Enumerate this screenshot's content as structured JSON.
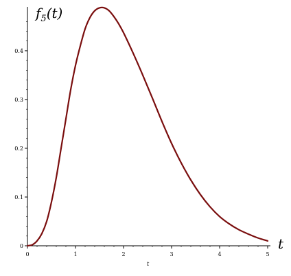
{
  "chart_data": {
    "type": "line",
    "ylabel": "f",
    "ylabel_sub": "5",
    "ylabel_arg": "(t)",
    "xlabel": "t",
    "xlabel_small": "t",
    "xlim": [
      0,
      5
    ],
    "ylim": [
      0,
      0.49
    ],
    "x_ticks": [
      0,
      1,
      2,
      3,
      4,
      5
    ],
    "x_tick_labels": [
      "0",
      "1",
      "2",
      "3",
      "4",
      "5"
    ],
    "y_ticks": [
      0,
      0.1,
      0.2,
      0.3,
      0.4
    ],
    "y_tick_labels": [
      "0",
      "0.1",
      "0.2",
      "0.3",
      "0.4"
    ],
    "grid": false,
    "line_color": "#7a0e0e",
    "series": [
      {
        "x": [
          0,
          0.1,
          0.2,
          0.3,
          0.4,
          0.5,
          0.6,
          0.7,
          0.8,
          0.9,
          1.0,
          1.1,
          1.2,
          1.3,
          1.4,
          1.5,
          1.6,
          1.7,
          1.8,
          1.9,
          2.0,
          2.2,
          2.4,
          2.6,
          2.8,
          3.0,
          3.2,
          3.4,
          3.6,
          3.8,
          4.0,
          4.2,
          4.4,
          4.6,
          4.8,
          5.0
        ],
        "y": [
          0,
          0.002,
          0.01,
          0.025,
          0.05,
          0.09,
          0.14,
          0.2,
          0.26,
          0.32,
          0.37,
          0.41,
          0.445,
          0.468,
          0.482,
          0.488,
          0.488,
          0.482,
          0.47,
          0.455,
          0.437,
          0.395,
          0.35,
          0.303,
          0.255,
          0.21,
          0.17,
          0.135,
          0.105,
          0.08,
          0.06,
          0.045,
          0.033,
          0.024,
          0.016,
          0.01
        ]
      }
    ]
  }
}
